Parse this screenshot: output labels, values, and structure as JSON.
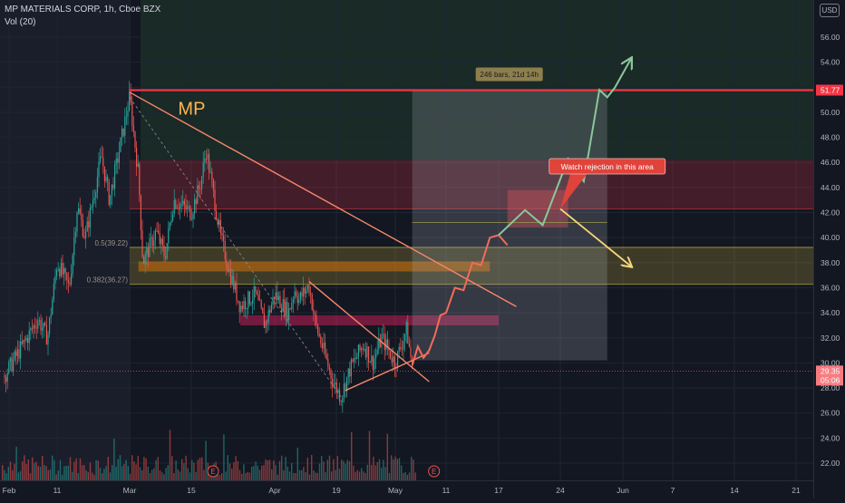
{
  "header": {
    "symbol_line": "MP MATERIALS CORP, 1h, Cboe BZX",
    "volume_line": "Vol (20)",
    "currency": "USD"
  },
  "colors": {
    "background": "#131722",
    "up": "#26a69a",
    "down": "#ef5350",
    "resistance": "#f23645",
    "trendline": "#f7866b",
    "target_arrow": "#8bc79a",
    "alt_arrow": "#f5d77a",
    "label": "#ffb74d"
  },
  "chart_data": {
    "type": "candlestick",
    "symbol": "MP MATERIALS CORP",
    "interval": "1h",
    "exchange": "Cboe BZX",
    "ylim": [
      21,
      57
    ],
    "y_ticks": [
      22,
      24,
      26,
      28,
      30,
      32,
      34,
      36,
      38,
      40,
      42,
      44,
      46,
      48,
      50,
      52,
      54,
      56
    ],
    "y_tick_labels": [
      "22.00",
      "24.00",
      "26.00",
      "28.00",
      "30.00",
      "32.00",
      "34.00",
      "36.00",
      "38.00",
      "40.00",
      "42.00",
      "44.00",
      "46.00",
      "48.00",
      "50.00",
      "52.00",
      "54.00",
      "56.00"
    ],
    "x_ticks": [
      {
        "label": "Feb",
        "x": "2022-02-01"
      },
      {
        "label": "11",
        "x": "2022-02-11"
      },
      {
        "label": "Mar",
        "x": "2022-03-01"
      },
      {
        "label": "15",
        "x": "2022-03-15"
      },
      {
        "label": "Apr",
        "x": "2022-04-01"
      },
      {
        "label": "19",
        "x": "2022-04-19"
      },
      {
        "label": "May",
        "x": "2022-05-02"
      },
      {
        "label": "11",
        "x": "2022-05-11"
      },
      {
        "label": "17",
        "x": "2022-05-17"
      },
      {
        "label": "24",
        "x": "2022-05-24"
      },
      {
        "label": "Jun",
        "x": "2022-06-01"
      },
      {
        "label": "7",
        "x": "2022-06-07"
      },
      {
        "label": "14",
        "x": "2022-06-14"
      },
      {
        "label": "21",
        "x": "2022-06-21"
      }
    ],
    "price_path": [
      {
        "x": "2022-01-31",
        "y": 29.0
      },
      {
        "x": "2022-02-04",
        "y": 31.5
      },
      {
        "x": "2022-02-07",
        "y": 33.5
      },
      {
        "x": "2022-02-09",
        "y": 32.0
      },
      {
        "x": "2022-02-11",
        "y": 38.0
      },
      {
        "x": "2022-02-14",
        "y": 36.0
      },
      {
        "x": "2022-02-16",
        "y": 42.5
      },
      {
        "x": "2022-02-18",
        "y": 40.0
      },
      {
        "x": "2022-02-22",
        "y": 46.5
      },
      {
        "x": "2022-02-24",
        "y": 43.0
      },
      {
        "x": "2022-03-01",
        "y": 51.2
      },
      {
        "x": "2022-03-03",
        "y": 45.0
      },
      {
        "x": "2022-03-04",
        "y": 38.0
      },
      {
        "x": "2022-03-07",
        "y": 40.5
      },
      {
        "x": "2022-03-09",
        "y": 38.5
      },
      {
        "x": "2022-03-11",
        "y": 43.0
      },
      {
        "x": "2022-03-15",
        "y": 42.0
      },
      {
        "x": "2022-03-17",
        "y": 44.5
      },
      {
        "x": "2022-03-18",
        "y": 47.0
      },
      {
        "x": "2022-03-21",
        "y": 40.0
      },
      {
        "x": "2022-03-23",
        "y": 37.0
      },
      {
        "x": "2022-03-25",
        "y": 34.5
      },
      {
        "x": "2022-03-28",
        "y": 35.5
      },
      {
        "x": "2022-03-30",
        "y": 33.0
      },
      {
        "x": "2022-04-01",
        "y": 35.5
      },
      {
        "x": "2022-04-05",
        "y": 34.0
      },
      {
        "x": "2022-04-07",
        "y": 36.0
      },
      {
        "x": "2022-04-08",
        "y": 35.0
      },
      {
        "x": "2022-04-11",
        "y": 36.2
      },
      {
        "x": "2022-04-13",
        "y": 33.0
      },
      {
        "x": "2022-04-18",
        "y": 28.5
      },
      {
        "x": "2022-04-20",
        "y": 27.3
      },
      {
        "x": "2022-04-22",
        "y": 29.5
      },
      {
        "x": "2022-04-25",
        "y": 31.5
      },
      {
        "x": "2022-04-27",
        "y": 30.0
      },
      {
        "x": "2022-04-29",
        "y": 32.0
      },
      {
        "x": "2022-05-02",
        "y": 30.0
      },
      {
        "x": "2022-05-04",
        "y": 32.7
      },
      {
        "x": "2022-05-05",
        "y": 29.6
      }
    ],
    "resistance_level": {
      "value": 51.77,
      "label": "51.77"
    },
    "last_price": {
      "value": 29.35,
      "label": "29.35",
      "countdown": "05:06"
    },
    "fibonacci_levels": [
      {
        "ratio": "0.5",
        "value": 39.22,
        "label": "0.5(39.22)"
      },
      {
        "ratio": "0.382",
        "value": 36.27,
        "label": "0.382(36.27)"
      }
    ],
    "zones": [
      {
        "name": "resistance-zone",
        "from": "2022-03-01",
        "to": "2022-06-30",
        "y0": 42.3,
        "y1": 46.2,
        "color": "#f23645"
      },
      {
        "name": "fib-zone",
        "from": "2022-03-01",
        "to": "2022-06-30",
        "y0": 36.27,
        "y1": 39.22,
        "color": "#d4c040"
      },
      {
        "name": "supply-zone-upper",
        "from": "2022-03-03",
        "to": "2022-05-16",
        "y0": 37.3,
        "y1": 38.1,
        "color": "#f57c00"
      },
      {
        "name": "supply-zone-lower",
        "from": "2022-03-25",
        "to": "2022-05-17",
        "y0": 33.0,
        "y1": 33.8,
        "color": "#e91e63"
      },
      {
        "name": "watch-box",
        "from": "2022-05-18",
        "to": "2022-05-25",
        "y0": 40.8,
        "y1": 43.8,
        "color": "#f23645"
      }
    ],
    "measure_box": {
      "from": "2022-05-05",
      "to": "2022-05-30",
      "y0": 30.2,
      "y1": 51.77,
      "label": "246 bars, 21d 14h"
    },
    "trendlines": [
      {
        "name": "long-trendline",
        "points": [
          {
            "x": "2022-03-01",
            "y": 51.6
          },
          {
            "x": "2022-05-19",
            "y": 34.5
          }
        ]
      },
      {
        "name": "wedge-upper-trendline",
        "points": [
          {
            "x": "2022-04-11",
            "y": 36.5
          },
          {
            "x": "2022-05-08",
            "y": 28.5
          }
        ]
      },
      {
        "name": "wedge-lower-trendline",
        "points": [
          {
            "x": "2022-04-21",
            "y": 27.8
          },
          {
            "x": "2022-05-08",
            "y": 30.8
          }
        ]
      }
    ],
    "projection_path": [
      {
        "x": "2022-05-05",
        "y": 29.8
      },
      {
        "x": "2022-05-06",
        "y": 31.3
      },
      {
        "x": "2022-05-07",
        "y": 30.4
      },
      {
        "x": "2022-05-08",
        "y": 31.0
      },
      {
        "x": "2022-05-09",
        "y": 32.2
      },
      {
        "x": "2022-05-10",
        "y": 33.8
      },
      {
        "x": "2022-05-11",
        "y": 34.0
      },
      {
        "x": "2022-05-12",
        "y": 36.0
      },
      {
        "x": "2022-05-13",
        "y": 35.8
      },
      {
        "x": "2022-05-14",
        "y": 38.0
      },
      {
        "x": "2022-05-15",
        "y": 37.8
      },
      {
        "x": "2022-05-16",
        "y": 40.0
      },
      {
        "x": "2022-05-17",
        "y": 40.2
      },
      {
        "x": "2022-05-18",
        "y": 39.4
      }
    ],
    "target_path": [
      {
        "x": "2022-05-17",
        "y": 40.2
      },
      {
        "x": "2022-05-20",
        "y": 42.2
      },
      {
        "x": "2022-05-22",
        "y": 41.0
      },
      {
        "x": "2022-05-25",
        "y": 46.3
      },
      {
        "x": "2022-05-27",
        "y": 44.5
      },
      {
        "x": "2022-05-29",
        "y": 51.8
      },
      {
        "x": "2022-05-30",
        "y": 51.2
      },
      {
        "x": "2022-05-31",
        "y": 52.0
      },
      {
        "x": "2022-06-02",
        "y": 54.3
      }
    ],
    "alt_path": [
      {
        "x": "2022-05-24",
        "y": 42.3
      },
      {
        "x": "2022-06-02",
        "y": 37.7
      }
    ],
    "annotations": [
      {
        "name": "ticker-label",
        "text": "MP",
        "x": "2022-03-12",
        "y": 49.8
      },
      {
        "name": "callout",
        "text": "Watch rejection in this area",
        "x": "2022-05-30",
        "y": 45.8
      }
    ],
    "earnings_markers": [
      "2022-03-15",
      "2022-05-05"
    ],
    "volume_label": "Vol (20)"
  }
}
